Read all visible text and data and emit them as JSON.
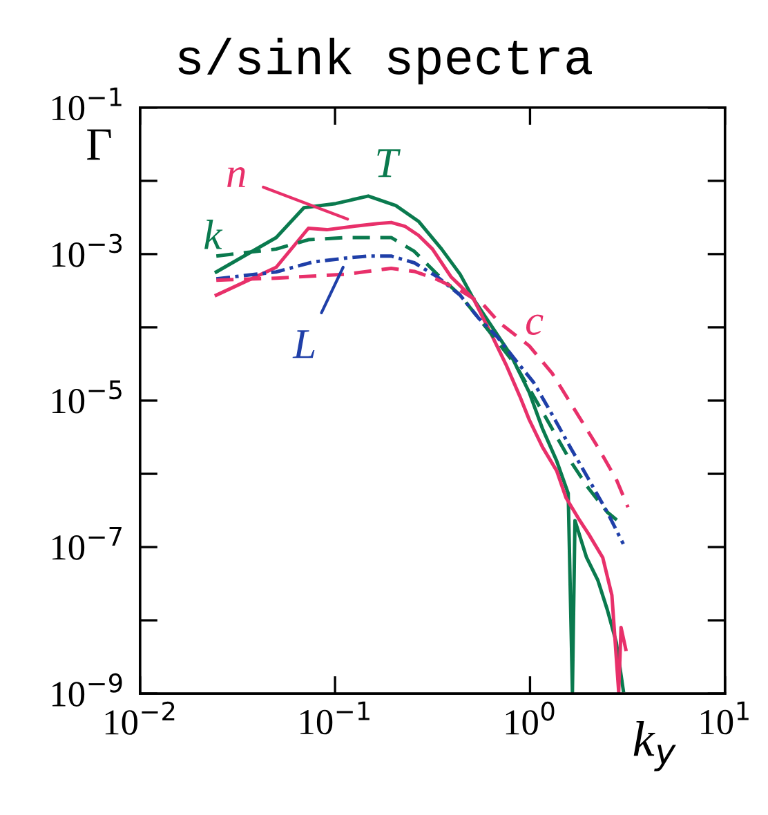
{
  "chart_data": {
    "type": "line",
    "title": "s/sink spectra",
    "xlabel": "k$_{y}$",
    "ylabel": "Γ",
    "log": "xy",
    "grid": false,
    "marker": "none",
    "xlim": [
      0.01,
      10
    ],
    "ylim": [
      1e-09,
      0.1
    ],
    "xticks": [
      {
        "value": 0.01,
        "label": "10$^{−2}$"
      },
      {
        "value": 0.1,
        "label": "10$^{−1}$"
      },
      {
        "value": 1,
        "label": "10$^{0}$"
      },
      {
        "value": 10,
        "label": "10$^{1}$"
      }
    ],
    "yticks": [
      {
        "value": 1e-09,
        "label": "10$^{−9}$"
      },
      {
        "value": 1e-08,
        "label": null
      },
      {
        "value": 1e-07,
        "label": "10$^{−7}$"
      },
      {
        "value": 1e-06,
        "label": null
      },
      {
        "value": 1e-05,
        "label": "10$^{−5}$"
      },
      {
        "value": 0.0001,
        "label": null
      },
      {
        "value": 0.001,
        "label": "10$^{−3}$"
      },
      {
        "value": 0.01,
        "label": null
      },
      {
        "value": 0.1,
        "label": "10$^{−1}$"
      }
    ],
    "series": [
      {
        "color": "#0a7a4e",
        "line_style": "solid",
        "x": [
          0.0246,
          0.0499,
          0.0692,
          0.101,
          0.148,
          0.205,
          0.268,
          0.352,
          0.438,
          0.515,
          0.641,
          0.797,
          0.99,
          1.16,
          1.37,
          1.57,
          1.65,
          1.7,
          1.95,
          2.23,
          2.49,
          2.77,
          3.01
        ],
        "values": [
          0.00057,
          0.00168,
          0.0043,
          0.0049,
          0.0062,
          0.0046,
          0.0028,
          0.00117,
          0.00053,
          0.00024,
          0.0001,
          4.2e-05,
          1.3e-05,
          4.1e-06,
          1.5e-06,
          5.4e-07,
          1.05e-09,
          2.3e-07,
          7.2e-08,
          3.5e-08,
          1.4e-08,
          5e-09,
          1.1e-09
        ]
      },
      {
        "color": "#e8306a",
        "line_style": "solid",
        "x": [
          0.0246,
          0.0499,
          0.073,
          0.0907,
          0.126,
          0.165,
          0.194,
          0.228,
          0.268,
          0.316,
          0.393,
          0.438,
          0.515,
          0.641,
          0.753,
          0.887,
          0.99,
          1.16,
          1.37,
          1.53,
          1.8,
          2.0,
          2.36,
          2.63,
          2.85,
          2.93,
          3.1
        ],
        "values": [
          0.000275,
          0.00066,
          0.00225,
          0.00215,
          0.0024,
          0.0026,
          0.0027,
          0.0024,
          0.0018,
          0.00117,
          0.00049,
          0.00037,
          0.00024,
          7.5e-05,
          3.1e-05,
          1.14e-05,
          5.5e-06,
          2.3e-06,
          1.1e-06,
          4.7e-07,
          2.3e-07,
          1.5e-07,
          7.2e-08,
          2.2e-08,
          1.05e-09,
          8e-09,
          4e-09
        ]
      },
      {
        "color": "#0a7a4e",
        "line_style": "dashed",
        "x": [
          0.0246,
          0.0499,
          0.073,
          0.113,
          0.194,
          0.255,
          0.334,
          0.438,
          0.544,
          0.676,
          0.841,
          1.045,
          1.3,
          1.61,
          2.0,
          2.49,
          2.93
        ],
        "values": [
          0.00094,
          0.00117,
          0.00157,
          0.00168,
          0.00168,
          0.00109,
          0.00053,
          0.000275,
          0.000134,
          6.5e-05,
          3.1e-05,
          1.14e-05,
          4.1e-06,
          1.5e-06,
          6.3e-07,
          3e-07,
          2.1e-07
        ]
      },
      {
        "color": "#1f3fa8",
        "line_style": "dashdot",
        "x": [
          0.0246,
          0.0499,
          0.0771,
          0.113,
          0.148,
          0.194,
          0.255,
          0.334,
          0.438,
          0.544,
          0.676,
          0.841,
          1.045,
          1.3,
          1.61,
          2.0,
          2.49,
          3.01
        ],
        "values": [
          0.00046,
          0.00057,
          0.00078,
          0.00088,
          0.00094,
          0.00094,
          0.00076,
          0.00049,
          0.000275,
          0.000134,
          7.5e-05,
          3.6e-05,
          1.76e-05,
          6.4e-06,
          2.3e-06,
          8.4e-07,
          3e-07,
          1.1e-07
        ]
      },
      {
        "color": "#e8306a",
        "line_style": "dashed",
        "x": [
          0.0246,
          0.0499,
          0.113,
          0.194,
          0.255,
          0.334,
          0.438,
          0.574,
          0.695,
          0.99,
          1.3,
          1.7,
          2.23,
          2.77,
          3.18
        ],
        "values": [
          0.00044,
          0.00047,
          0.00053,
          0.00064,
          0.00058,
          0.00045,
          0.00032,
          0.000206,
          0.000116,
          5.6e-05,
          2.35e-05,
          7.4e-06,
          2.3e-06,
          8.4e-07,
          3.5e-07
        ]
      }
    ],
    "annotations": [
      "k",
      {
        "text": "n",
        "x": 0.116,
        "y": 0.003
      },
      "T",
      {
        "text": "L",
        "x": 0.11,
        "y": 0.00066
      },
      "c"
    ]
  }
}
